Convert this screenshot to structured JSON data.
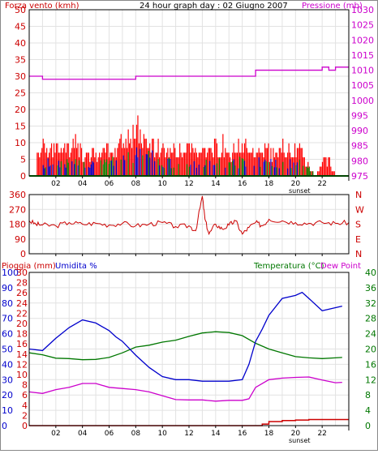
{
  "title": "24 hour graph day : 02 Giugno 2007",
  "colors": {
    "wind": "#ff0000",
    "gust_blue": "#0000cc",
    "gust_green": "#008800",
    "pressure": "#cc00cc",
    "direction": "#cc0000",
    "humidity": "#0000cc",
    "temperature": "#007700",
    "dewpoint": "#cc00cc",
    "rain": "#cc0000",
    "axis_red": "#cc0000",
    "axis_blue": "#0000cc",
    "axis_green": "#007700",
    "grid": "#e2e2e2"
  },
  "chart_data": [
    {
      "type": "bar",
      "panel": "wind",
      "title": "24 hour graph day : 02 Giugno 2007",
      "left_label": "Forza vento (kmh)",
      "right_label": "Pressione (mb)",
      "left_ticks": [
        "0",
        "5",
        "10",
        "15",
        "20",
        "25",
        "30",
        "35",
        "40",
        "45",
        "50"
      ],
      "right_ticks": [
        "975",
        "980",
        "985",
        "990",
        "995",
        "1000",
        "1005",
        "1010",
        "1015",
        "1020",
        "1025",
        "1030"
      ],
      "x_ticks": [
        "02",
        "04",
        "06",
        "08",
        "10",
        "12",
        "14",
        "16",
        "18",
        "20",
        "22"
      ],
      "sunset_label": "sunset",
      "ylim_left": [
        0,
        50
      ],
      "ylim_right": [
        975,
        1030
      ],
      "xlim": [
        0,
        24
      ],
      "grid": true,
      "series": [
        {
          "name": "Forza vento",
          "x": [
            0.5,
            1,
            1.5,
            2,
            2.5,
            3,
            3.5,
            4,
            4.5,
            5,
            5.5,
            6,
            6.5,
            7,
            7.5,
            8,
            8.5,
            9,
            9.5,
            10,
            10.5,
            11,
            11.5,
            12,
            12.5,
            13,
            13.5,
            14,
            14.5,
            15,
            15.5,
            16,
            16.5,
            17,
            17.5,
            18,
            18.5,
            19,
            19.5,
            20,
            20.5,
            21,
            21.5,
            22,
            22.5,
            23
          ],
          "values": [
            7,
            10,
            9,
            9,
            10,
            9,
            11,
            8,
            9,
            7,
            8,
            9,
            10,
            12,
            15,
            17,
            13,
            11,
            10,
            10,
            9,
            8,
            9,
            10,
            9,
            8,
            8,
            10,
            11,
            8,
            10,
            10,
            11,
            8,
            9,
            9,
            7,
            10,
            9,
            9,
            8,
            3,
            0,
            5,
            6,
            0
          ]
        },
        {
          "name": "Raffiche",
          "x": [
            1,
            2,
            3,
            4,
            5,
            6,
            7,
            7.5,
            8,
            8.5,
            9,
            9.5,
            10,
            11,
            12,
            13,
            14,
            15,
            16,
            17,
            18,
            19,
            20
          ],
          "values": [
            5,
            6,
            5,
            6,
            5,
            5,
            8,
            10,
            9,
            8,
            9,
            7,
            6,
            5,
            5,
            6,
            6,
            5,
            6,
            6,
            5,
            6,
            5
          ]
        },
        {
          "name": "Pressione",
          "x": [
            0,
            0.5,
            1,
            3,
            6,
            8,
            10,
            12,
            13,
            14,
            15,
            16,
            17,
            18,
            19,
            20,
            21,
            22,
            22.5,
            23,
            24
          ],
          "values": [
            1008,
            1008,
            1007,
            1007,
            1007,
            1008,
            1008,
            1008,
            1008,
            1008,
            1008,
            1008,
            1010,
            1010,
            1010,
            1010,
            1010,
            1011,
            1010,
            1011,
            1011
          ]
        }
      ]
    },
    {
      "type": "line",
      "panel": "direction",
      "left_ticks": [
        "0",
        "90",
        "180",
        "270",
        "360"
      ],
      "compass": [
        "N",
        "W",
        "S",
        "E",
        "N"
      ],
      "ylim": [
        0,
        360
      ],
      "xlim": [
        0,
        24
      ],
      "series": [
        {
          "name": "Direzione",
          "x": [
            0,
            0.5,
            1,
            2,
            3,
            4,
            5,
            6,
            7,
            8,
            9,
            10,
            11,
            12,
            12.5,
            13,
            13.2,
            13.5,
            14,
            14.5,
            15,
            15.5,
            16,
            16.5,
            17,
            17.5,
            18,
            19,
            20,
            21,
            22,
            23,
            24
          ],
          "values": [
            200,
            180,
            175,
            170,
            190,
            180,
            185,
            175,
            185,
            170,
            180,
            190,
            165,
            170,
            140,
            350,
            210,
            120,
            180,
            150,
            175,
            200,
            120,
            160,
            190,
            170,
            210,
            200,
            190,
            185,
            190,
            185,
            190
          ]
        }
      ]
    },
    {
      "type": "line",
      "panel": "temp_hum",
      "left_label_rain": "Pioggia (mm)",
      "left_label_hum": "Umidita %",
      "right_label_temp": "Temperatura (°C)",
      "right_label_dew": "Dew Point",
      "rain_ticks": [
        "0",
        "2",
        "4",
        "6",
        "8",
        "10",
        "12",
        "14",
        "16",
        "18",
        "20",
        "22",
        "24",
        "26",
        "28",
        "30"
      ],
      "hum_ticks": [
        "0",
        "10",
        "20",
        "30",
        "40",
        "50",
        "60",
        "70",
        "80",
        "90",
        "100"
      ],
      "temp_ticks": [
        "0",
        "4",
        "8",
        "12",
        "16",
        "20",
        "24",
        "28",
        "32",
        "36",
        "40"
      ],
      "ylim_rain": [
        0,
        30
      ],
      "ylim_hum": [
        0,
        100
      ],
      "ylim_temp": [
        0,
        40
      ],
      "xlim": [
        0,
        24
      ],
      "series": [
        {
          "name": "Umidita",
          "x": [
            0,
            1,
            2,
            3,
            4,
            5,
            6,
            6.5,
            7,
            8,
            9,
            10,
            11,
            12,
            13,
            14,
            15,
            16,
            16.5,
            17,
            17.5,
            18,
            19,
            20,
            20.5,
            21,
            22,
            23,
            23.5
          ],
          "values": [
            50,
            49,
            57,
            64,
            69,
            67,
            62,
            58,
            55,
            46,
            38,
            32,
            30,
            30,
            29,
            29,
            29,
            30,
            40,
            55,
            63,
            72,
            83,
            85,
            87,
            83,
            75,
            77,
            78
          ]
        },
        {
          "name": "Temperatura",
          "x": [
            0,
            1,
            2,
            3,
            4,
            5,
            6,
            7,
            8,
            9,
            10,
            11,
            12,
            13,
            14,
            15,
            16,
            17,
            18,
            19,
            20,
            21,
            22,
            23,
            23.5
          ],
          "values": [
            19,
            18.5,
            17.6,
            17.5,
            17.2,
            17.3,
            17.8,
            19,
            20.5,
            21,
            21.8,
            22.3,
            23.3,
            24.2,
            24.5,
            24.3,
            23.5,
            21.5,
            20,
            19,
            18,
            17.7,
            17.5,
            17.7,
            17.8
          ]
        },
        {
          "name": "Dew Point",
          "x": [
            0,
            1,
            2,
            3,
            4,
            5,
            6,
            7,
            8,
            9,
            10,
            11,
            12,
            13,
            14,
            15,
            16,
            16.5,
            17,
            18,
            19,
            20,
            21,
            22,
            23,
            23.5
          ],
          "values": [
            8.8,
            8.4,
            9.4,
            10,
            11,
            11,
            10,
            9.7,
            9.4,
            8.8,
            7.8,
            6.8,
            6.7,
            6.7,
            6.4,
            6.6,
            6.6,
            7,
            10,
            12,
            12.4,
            12.6,
            12.7,
            11.9,
            11.2,
            11.3
          ]
        },
        {
          "name": "Pioggia",
          "x": [
            0,
            16.5,
            17.5,
            18,
            19,
            20,
            21,
            22,
            23,
            24
          ],
          "values": [
            0,
            0,
            0.3,
            0.8,
            1.0,
            1.1,
            1.2,
            1.2,
            1.2,
            1.2
          ]
        }
      ],
      "x_ticks": [
        "02",
        "04",
        "06",
        "08",
        "10",
        "12",
        "14",
        "16",
        "18",
        "20",
        "22"
      ],
      "sunset_label": "sunset"
    }
  ]
}
